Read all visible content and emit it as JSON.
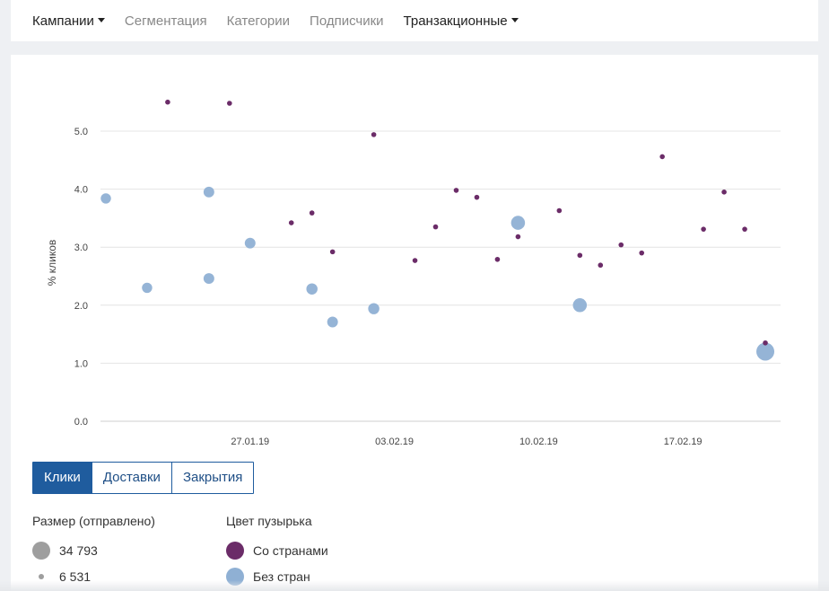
{
  "nav": {
    "items": [
      {
        "label": "Кампании",
        "dropdown": true,
        "dark": true
      },
      {
        "label": "Сегментация",
        "dropdown": false,
        "dark": false
      },
      {
        "label": "Категории",
        "dropdown": false,
        "dark": false
      },
      {
        "label": "Подписчики",
        "dropdown": false,
        "dark": false
      },
      {
        "label": "Транзакционные",
        "dropdown": true,
        "dark": true
      }
    ]
  },
  "tabs": [
    {
      "label": "Клики",
      "active": true
    },
    {
      "label": "Доставки",
      "active": false
    },
    {
      "label": "Закрытия",
      "active": false
    }
  ],
  "legend": {
    "size_title": "Размер (отправлено)",
    "size_max_label": "34 793",
    "size_min_label": "6 531",
    "color_title": "Цвет пузырька",
    "with_countries_label": "Со странами",
    "without_countries_label": "Без стран"
  },
  "colors": {
    "with_countries": "#6b2c68",
    "without_countries": "#8fb0d4",
    "size_legend": "#9e9e9e",
    "accent": "#1f5c9e"
  },
  "chart_data": {
    "type": "scatter",
    "xlabel": "",
    "ylabel": "% кликов",
    "ylim": [
      0,
      5.0
    ],
    "yticks": [
      0.0,
      1.0,
      2.0,
      3.0,
      4.0,
      5.0
    ],
    "ytick_labels": [
      "0.0",
      "1.0",
      "2.0",
      "3.0",
      "4.0",
      "5.0"
    ],
    "xlim": [
      "2019-01-20",
      "2019-02-22"
    ],
    "xticks": [
      "2019-01-27",
      "2019-02-03",
      "2019-02-10",
      "2019-02-17"
    ],
    "xtick_labels": [
      "27.01.19",
      "03.02.19",
      "10.02.19",
      "17.02.19"
    ],
    "grid": true,
    "size_range": [
      6531,
      34793
    ],
    "series": [
      {
        "name": "Со странами",
        "points": [
          {
            "date": "2019-01-23",
            "value": 5.5,
            "sent": 6531
          },
          {
            "date": "2019-01-26",
            "value": 5.48,
            "sent": 6531
          },
          {
            "date": "2019-01-29",
            "value": 3.42,
            "sent": 6531
          },
          {
            "date": "2019-01-30",
            "value": 3.59,
            "sent": 6531
          },
          {
            "date": "2019-01-31",
            "value": 2.92,
            "sent": 6531
          },
          {
            "date": "2019-02-02",
            "value": 4.94,
            "sent": 6531
          },
          {
            "date": "2019-02-04",
            "value": 2.77,
            "sent": 6531
          },
          {
            "date": "2019-02-05",
            "value": 3.35,
            "sent": 6531
          },
          {
            "date": "2019-02-06",
            "value": 3.98,
            "sent": 6531
          },
          {
            "date": "2019-02-07",
            "value": 3.86,
            "sent": 6531
          },
          {
            "date": "2019-02-08",
            "value": 2.79,
            "sent": 6531
          },
          {
            "date": "2019-02-09",
            "value": 3.18,
            "sent": 6531
          },
          {
            "date": "2019-02-11",
            "value": 3.63,
            "sent": 6531
          },
          {
            "date": "2019-02-12",
            "value": 2.86,
            "sent": 6531
          },
          {
            "date": "2019-02-13",
            "value": 2.69,
            "sent": 6531
          },
          {
            "date": "2019-02-14",
            "value": 3.04,
            "sent": 6531
          },
          {
            "date": "2019-02-15",
            "value": 2.9,
            "sent": 6531
          },
          {
            "date": "2019-02-16",
            "value": 4.56,
            "sent": 6531
          },
          {
            "date": "2019-02-18",
            "value": 3.31,
            "sent": 6531
          },
          {
            "date": "2019-02-19",
            "value": 3.95,
            "sent": 6531
          },
          {
            "date": "2019-02-20",
            "value": 3.31,
            "sent": 6531
          },
          {
            "date": "2019-02-21",
            "value": 1.35,
            "sent": 6531
          }
        ]
      },
      {
        "name": "Без стран",
        "points": [
          {
            "date": "2019-01-20",
            "value": 3.84,
            "sent": 18000
          },
          {
            "date": "2019-01-22",
            "value": 2.3,
            "sent": 18000
          },
          {
            "date": "2019-01-25",
            "value": 3.95,
            "sent": 19000
          },
          {
            "date": "2019-01-25",
            "value": 2.46,
            "sent": 19000
          },
          {
            "date": "2019-01-27",
            "value": 3.07,
            "sent": 19000
          },
          {
            "date": "2019-01-30",
            "value": 2.28,
            "sent": 20000
          },
          {
            "date": "2019-01-31",
            "value": 1.71,
            "sent": 19000
          },
          {
            "date": "2019-02-02",
            "value": 1.94,
            "sent": 20000
          },
          {
            "date": "2019-02-09",
            "value": 3.42,
            "sent": 26000
          },
          {
            "date": "2019-02-12",
            "value": 2.0,
            "sent": 26000
          },
          {
            "date": "2019-02-21",
            "value": 1.2,
            "sent": 34793
          }
        ]
      }
    ]
  }
}
